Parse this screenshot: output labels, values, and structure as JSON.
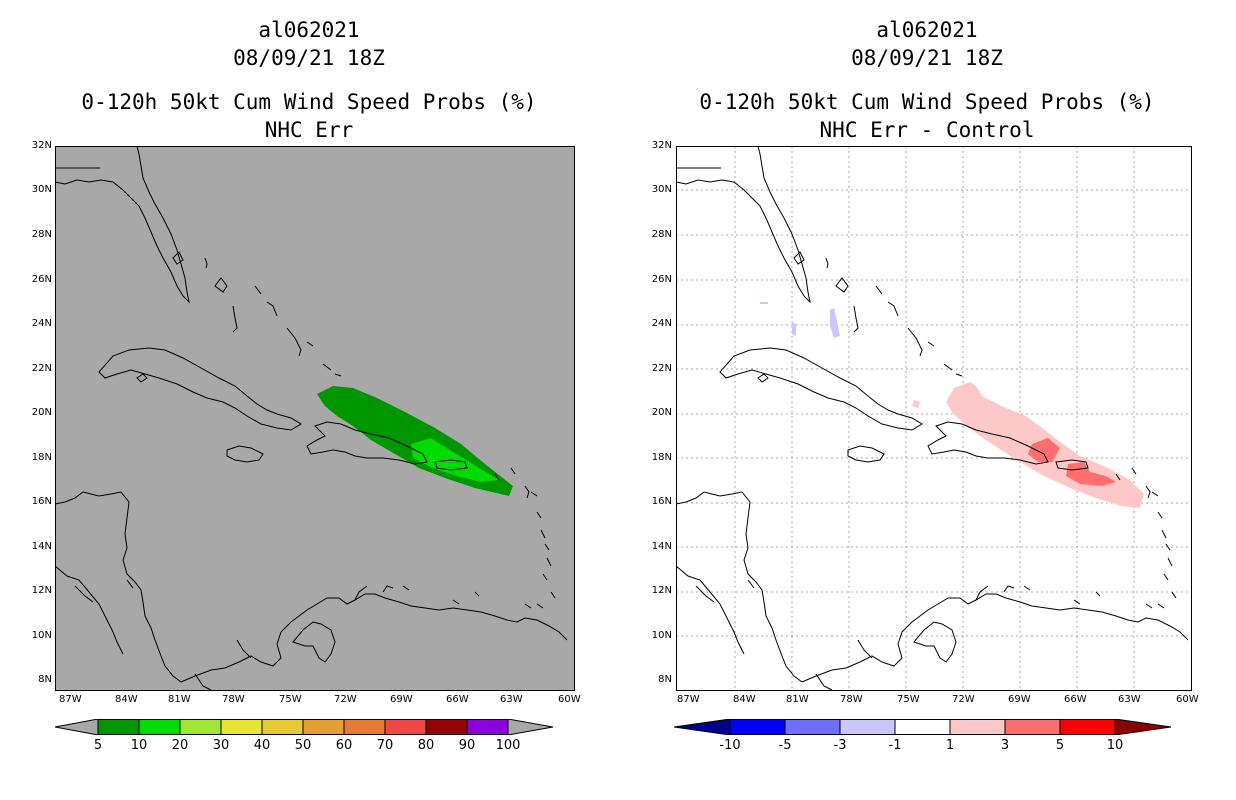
{
  "left": {
    "title1": "al062021",
    "title2": "08/09/21 18Z",
    "title3": "0-120h 50kt Cum Wind Speed Probs (%)",
    "title4": "NHC Err",
    "background": "#a8a8a8",
    "colorbar": {
      "labels": [
        "5",
        "10",
        "20",
        "30",
        "40",
        "50",
        "60",
        "70",
        "80",
        "90",
        "100"
      ],
      "colors": [
        "#a8a8a8",
        "#009600",
        "#00dc00",
        "#a0e632",
        "#e6e632",
        "#e6c832",
        "#e6a032",
        "#e67832",
        "#f04646",
        "#960000",
        "#8c00dc",
        "#a8a8a8"
      ]
    }
  },
  "right": {
    "title1": "al062021",
    "title2": "08/09/21 18Z",
    "title3": "0-120h 50kt Cum Wind Speed Probs (%)",
    "title4": "NHC Err - Control",
    "background": "#ffffff",
    "colorbar": {
      "labels": [
        "-10",
        "-5",
        "-3",
        "-1",
        "1",
        "3",
        "5",
        "10"
      ],
      "colors": [
        "#00008c",
        "#0000ff",
        "#6e6eff",
        "#c8c8ff",
        "#ffffff",
        "#ffc8c8",
        "#ff6e6e",
        "#ff0000",
        "#8c0000"
      ]
    }
  },
  "axes": {
    "lat_labels": [
      "32N",
      "30N",
      "28N",
      "26N",
      "24N",
      "22N",
      "20N",
      "18N",
      "16N",
      "14N",
      "12N",
      "10N",
      "8N"
    ],
    "lon_labels": [
      "87W",
      "84W",
      "81W",
      "78W",
      "75W",
      "72W",
      "69W",
      "66W",
      "63W",
      "60W"
    ]
  }
}
